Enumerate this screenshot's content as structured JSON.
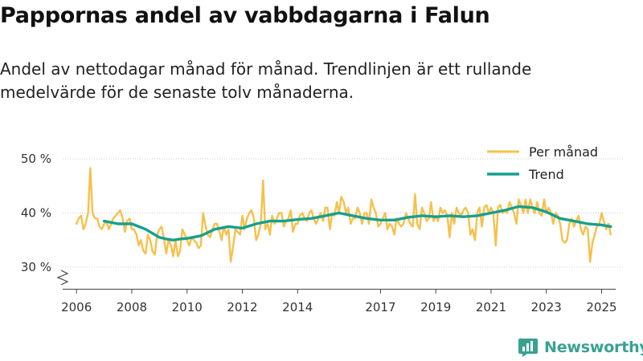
{
  "header": {
    "title": "Pappornas andel av vabbdagarna i Falun",
    "subtitle": "Andel av nettodagar månad för månad. Trendlinjen är ett rullande medelvärde för de senaste tolv månaderna."
  },
  "brand": {
    "name": "Newsworthy",
    "icon": "newsworthy-logo-icon"
  },
  "colors": {
    "monthly": "#f7c04a",
    "trend": "#16a08d",
    "grid": "#c8c8c8",
    "axis": "#444444",
    "brand": "#3aa192"
  },
  "chart_data": {
    "type": "line",
    "title": "Pappornas andel av vabbdagarna i Falun",
    "xlabel": "",
    "ylabel": "",
    "xlim": [
      2005.5,
      2025.8
    ],
    "ylim": [
      30,
      50
    ],
    "y_ticks": [
      30,
      40,
      50
    ],
    "y_tick_labels": [
      "30 %",
      "40 %",
      "50 %"
    ],
    "x_ticks": [
      2006,
      2008,
      2010,
      2012,
      2014,
      2017,
      2019,
      2021,
      2023,
      2025
    ],
    "x_tick_labels": [
      "2006",
      "2008",
      "2010",
      "2012",
      "2014",
      "2017",
      "2019",
      "2021",
      "2023",
      "2025"
    ],
    "grid": true,
    "legend_position": "top-right",
    "series": [
      {
        "name": "Per månad",
        "x": [
          2006.0,
          2006.08,
          2006.17,
          2006.25,
          2006.33,
          2006.42,
          2006.5,
          2006.58,
          2006.67,
          2006.75,
          2006.83,
          2006.92,
          2007.0,
          2007.08,
          2007.17,
          2007.25,
          2007.33,
          2007.42,
          2007.5,
          2007.58,
          2007.67,
          2007.75,
          2007.83,
          2007.92,
          2008.0,
          2008.08,
          2008.17,
          2008.25,
          2008.33,
          2008.42,
          2008.5,
          2008.58,
          2008.67,
          2008.75,
          2008.83,
          2008.92,
          2009.0,
          2009.08,
          2009.17,
          2009.25,
          2009.33,
          2009.42,
          2009.5,
          2009.58,
          2009.67,
          2009.75,
          2009.83,
          2009.92,
          2010.0,
          2010.08,
          2010.17,
          2010.25,
          2010.33,
          2010.42,
          2010.5,
          2010.58,
          2010.67,
          2010.75,
          2010.83,
          2010.92,
          2011.0,
          2011.08,
          2011.17,
          2011.25,
          2011.33,
          2011.42,
          2011.5,
          2011.58,
          2011.67,
          2011.75,
          2011.83,
          2011.92,
          2012.0,
          2012.08,
          2012.17,
          2012.25,
          2012.33,
          2012.42,
          2012.5,
          2012.58,
          2012.67,
          2012.75,
          2012.83,
          2012.92,
          2013.0,
          2013.08,
          2013.17,
          2013.25,
          2013.33,
          2013.42,
          2013.5,
          2013.58,
          2013.67,
          2013.75,
          2013.83,
          2013.92,
          2014.0,
          2014.08,
          2014.17,
          2014.25,
          2014.33,
          2014.42,
          2014.5,
          2014.58,
          2014.67,
          2014.75,
          2014.83,
          2014.92,
          2015.0,
          2015.08,
          2015.17,
          2015.25,
          2015.33,
          2015.42,
          2015.5,
          2015.58,
          2015.67,
          2015.75,
          2015.83,
          2015.92,
          2016.0,
          2016.08,
          2016.17,
          2016.25,
          2016.33,
          2016.42,
          2016.5,
          2016.58,
          2016.67,
          2016.75,
          2016.83,
          2016.92,
          2017.0,
          2017.08,
          2017.17,
          2017.25,
          2017.33,
          2017.42,
          2017.5,
          2017.58,
          2017.67,
          2017.75,
          2017.83,
          2017.92,
          2018.0,
          2018.08,
          2018.17,
          2018.25,
          2018.33,
          2018.42,
          2018.5,
          2018.58,
          2018.67,
          2018.75,
          2018.83,
          2018.92,
          2019.0,
          2019.08,
          2019.17,
          2019.25,
          2019.33,
          2019.42,
          2019.5,
          2019.58,
          2019.67,
          2019.75,
          2019.83,
          2019.92,
          2020.0,
          2020.08,
          2020.17,
          2020.25,
          2020.33,
          2020.42,
          2020.5,
          2020.58,
          2020.67,
          2020.75,
          2020.83,
          2020.92,
          2021.0,
          2021.08,
          2021.17,
          2021.25,
          2021.33,
          2021.42,
          2021.5,
          2021.58,
          2021.67,
          2021.75,
          2021.83,
          2021.92,
          2022.0,
          2022.08,
          2022.17,
          2022.25,
          2022.33,
          2022.42,
          2022.5,
          2022.58,
          2022.67,
          2022.75,
          2022.83,
          2022.92,
          2023.0,
          2023.08,
          2023.17,
          2023.25,
          2023.33,
          2023.42,
          2023.5,
          2023.58,
          2023.67,
          2023.75,
          2023.83,
          2023.92,
          2024.0,
          2024.08,
          2024.17,
          2024.25,
          2024.33,
          2024.42,
          2024.5,
          2024.58,
          2024.67,
          2024.75,
          2024.83,
          2024.92,
          2025.0,
          2025.08,
          2025.17,
          2025.25,
          2025.33
        ],
        "values": [
          38.0,
          39.0,
          39.5,
          37.0,
          38.0,
          40.0,
          48.3,
          40.0,
          39.0,
          39.0,
          37.5,
          37.0,
          38.0,
          38.5,
          37.0,
          38.0,
          39.0,
          39.5,
          40.0,
          40.5,
          39.0,
          36.5,
          38.5,
          39.0,
          37.0,
          37.0,
          36.0,
          34.0,
          35.0,
          33.0,
          32.5,
          36.0,
          35.0,
          33.0,
          32.3,
          36.0,
          37.0,
          37.5,
          35.0,
          32.5,
          35.0,
          34.0,
          32.0,
          35.0,
          32.0,
          33.0,
          37.0,
          36.0,
          35.0,
          34.0,
          35.5,
          35.0,
          34.5,
          33.5,
          34.0,
          40.0,
          37.5,
          36.0,
          35.5,
          37.0,
          38.0,
          38.0,
          36.5,
          35.0,
          37.5,
          36.0,
          37.0,
          31.0,
          34.0,
          37.0,
          36.5,
          36.0,
          39.5,
          37.0,
          39.0,
          40.0,
          40.5,
          39.0,
          35.0,
          36.0,
          38.0,
          46.0,
          37.0,
          38.0,
          36.0,
          39.5,
          38.0,
          39.0,
          40.0,
          40.0,
          37.5,
          38.5,
          39.0,
          40.5,
          36.5,
          38.0,
          38.0,
          39.5,
          40.0,
          39.0,
          38.5,
          40.0,
          40.5,
          39.0,
          38.0,
          39.0,
          40.0,
          38.5,
          41.0,
          41.0,
          37.0,
          40.0,
          39.5,
          42.0,
          40.0,
          43.0,
          42.0,
          40.0,
          41.0,
          38.0,
          39.0,
          39.0,
          41.0,
          40.0,
          38.0,
          40.0,
          40.0,
          38.0,
          42.5,
          41.0,
          40.0,
          37.5,
          38.0,
          39.0,
          40.0,
          37.0,
          38.0,
          37.5,
          36.0,
          39.0,
          38.0,
          37.5,
          38.0,
          40.0,
          39.0,
          38.0,
          37.5,
          43.5,
          38.0,
          37.0,
          41.0,
          40.0,
          38.5,
          39.0,
          42.0,
          38.5,
          39.5,
          38.5,
          41.0,
          40.0,
          40.5,
          39.5,
          35.5,
          40.0,
          38.0,
          41.0,
          40.0,
          39.5,
          40.5,
          41.0,
          40.0,
          36.0,
          37.0,
          35.0,
          40.0,
          41.0,
          37.5,
          41.0,
          41.5,
          40.0,
          41.0,
          40.0,
          34.0,
          41.0,
          41.5,
          40.0,
          40.5,
          40.0,
          42.0,
          41.0,
          40.0,
          38.0,
          42.5,
          41.5,
          40.0,
          42.5,
          40.0,
          42.5,
          41.0,
          40.0,
          42.0,
          40.0,
          39.5,
          42.5,
          40.0,
          41.0,
          40.0,
          38.0,
          40.0,
          39.5,
          38.0,
          35.0,
          34.5,
          35.0,
          38.0,
          39.0,
          37.5,
          38.5,
          39.5,
          37.0,
          36.0,
          37.5,
          37.0,
          31.0,
          34.5,
          36.0,
          37.5,
          38.0,
          40.0,
          38.5,
          37.0,
          38.0,
          36.0
        ]
      },
      {
        "name": "Trend",
        "x": [
          2007.0,
          2007.5,
          2008.0,
          2008.5,
          2009.0,
          2009.25,
          2009.5,
          2009.75,
          2010.0,
          2010.5,
          2011.0,
          2011.5,
          2012.0,
          2012.5,
          2013.0,
          2013.5,
          2014.0,
          2014.5,
          2015.0,
          2015.5,
          2016.0,
          2016.5,
          2017.0,
          2017.5,
          2018.0,
          2018.5,
          2019.0,
          2019.5,
          2020.0,
          2020.5,
          2021.0,
          2021.5,
          2022.0,
          2022.5,
          2023.0,
          2023.5,
          2024.0,
          2024.5,
          2025.0,
          2025.33
        ],
        "values": [
          38.5,
          38.0,
          38.0,
          37.0,
          35.5,
          35.2,
          35.0,
          35.2,
          35.3,
          35.8,
          37.0,
          37.5,
          37.2,
          38.0,
          38.5,
          38.5,
          38.8,
          39.0,
          39.5,
          40.0,
          39.5,
          39.0,
          38.7,
          38.7,
          39.2,
          39.5,
          39.3,
          39.5,
          39.3,
          39.5,
          40.0,
          40.5,
          41.2,
          41.0,
          40.2,
          39.0,
          38.5,
          38.0,
          37.8,
          37.5
        ]
      }
    ]
  }
}
